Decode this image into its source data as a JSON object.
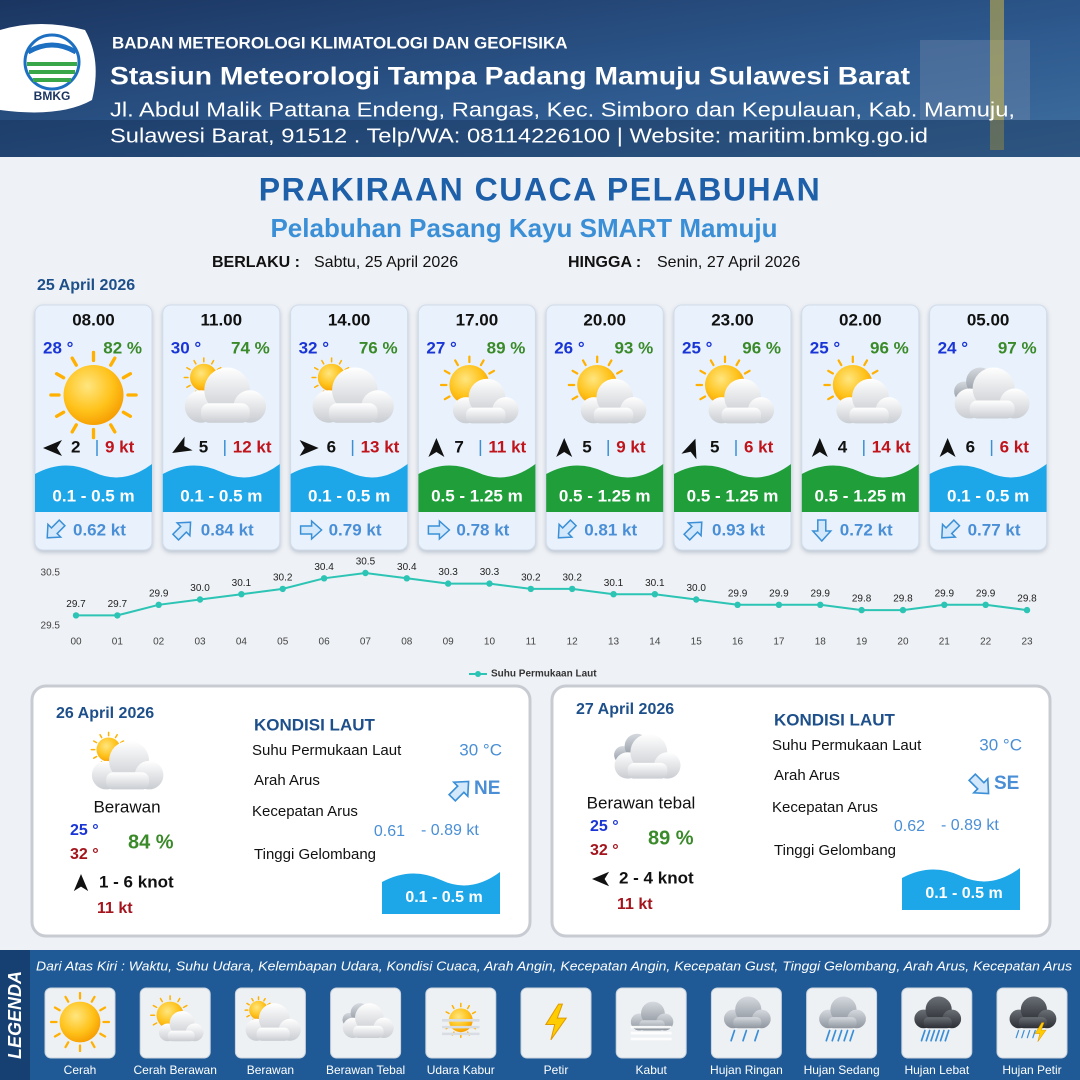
{
  "header": {
    "logo": "BMKG",
    "agency": "BADAN METEOROLOGI KLIMATOLOGI DAN GEOFISIKA",
    "station": "Stasiun Meteorologi Tampa Padang Mamuju Sulawesi Barat",
    "address": [
      "Jl. Abdul Malik Pattana Endeng, Rangas, Kec. Simboro dan Kepulauan, Kab. Mamuju,",
      "Sulawesi Barat, 91512 . Telp/WA: 08114226100 | Website: maritim.bmkg.go.id"
    ]
  },
  "title": "PRAKIRAAN CUACA PELABUHAN",
  "subtitle": "Pelabuhan Pasang Kayu SMART Mamuju",
  "validity": {
    "from_label": "BERLAKU :",
    "from": "Sabtu, 25 April 2026",
    "to_label": "HINGGA :",
    "to": "Senin, 27 April 2026"
  },
  "hourly": {
    "date": "25 April 2026",
    "items": [
      {
        "time": "08.00",
        "temp": "28 °",
        "humidity": "82 %",
        "icon": "sun",
        "wind_deg": 270,
        "wind": "2",
        "gust": "9 kt",
        "wave": "0.1 - 0.5 m",
        "wave_color": "#1ea7e8",
        "current_deg": 225,
        "current": "0.62 kt"
      },
      {
        "time": "11.00",
        "temp": "30 °",
        "humidity": "74 %",
        "icon": "cloud-sun",
        "wind_deg": 240,
        "wind": "5",
        "gust": "12 kt",
        "wave": "0.1 - 0.5 m",
        "wave_color": "#1ea7e8",
        "current_deg": 45,
        "current": "0.84 kt"
      },
      {
        "time": "14.00",
        "temp": "32 °",
        "humidity": "76 %",
        "icon": "cloud-sun",
        "wind_deg": 90,
        "wind": "6",
        "gust": "13 kt",
        "wave": "0.1 - 0.5 m",
        "wave_color": "#1ea7e8",
        "current_deg": 90,
        "current": "0.79 kt"
      },
      {
        "time": "17.00",
        "temp": "27 °",
        "humidity": "89 %",
        "icon": "sun-cloud",
        "wind_deg": 0,
        "wind": "7",
        "gust": "11 kt",
        "wave": "0.5 - 1.25 m",
        "wave_color": "#1f9e3a",
        "current_deg": 90,
        "current": "0.78 kt"
      },
      {
        "time": "20.00",
        "temp": "26 °",
        "humidity": "93 %",
        "icon": "sun-cloud",
        "wind_deg": 0,
        "wind": "5",
        "gust": "9 kt",
        "wave": "0.5 - 1.25 m",
        "wave_color": "#1f9e3a",
        "current_deg": 225,
        "current": "0.81 kt"
      },
      {
        "time": "23.00",
        "temp": "25 °",
        "humidity": "96 %",
        "icon": "sun-cloud",
        "wind_deg": 20,
        "wind": "5",
        "gust": "6 kt",
        "wave": "0.5 - 1.25 m",
        "wave_color": "#1f9e3a",
        "current_deg": 45,
        "current": "0.93 kt"
      },
      {
        "time": "02.00",
        "temp": "25 °",
        "humidity": "96 %",
        "icon": "sun-cloud",
        "wind_deg": 0,
        "wind": "4",
        "gust": "14 kt",
        "wave": "0.5 - 1.25 m",
        "wave_color": "#1f9e3a",
        "current_deg": 180,
        "current": "0.72 kt"
      },
      {
        "time": "05.00",
        "temp": "24 °",
        "humidity": "97 %",
        "icon": "cloud",
        "wind_deg": 0,
        "wind": "6",
        "gust": "6 kt",
        "wave": "0.1 - 0.5 m",
        "wave_color": "#1ea7e8",
        "current_deg": 225,
        "current": "0.77 kt"
      }
    ]
  },
  "chart_data": {
    "type": "line",
    "categories": [
      "00",
      "01",
      "02",
      "03",
      "04",
      "05",
      "06",
      "07",
      "08",
      "09",
      "10",
      "11",
      "12",
      "13",
      "14",
      "15",
      "16",
      "17",
      "18",
      "19",
      "20",
      "21",
      "22",
      "23"
    ],
    "series": [
      {
        "name": "Suhu Permukaan Laut",
        "color": "#2cc4b4",
        "values": [
          29.7,
          29.7,
          29.9,
          30.0,
          30.1,
          30.2,
          30.4,
          30.5,
          30.4,
          30.3,
          30.3,
          30.2,
          30.2,
          30.1,
          30.1,
          30.0,
          29.9,
          29.9,
          29.9,
          29.8,
          29.8,
          29.9,
          29.9,
          29.8
        ],
        "value_labels": [
          "29.7",
          "29.7",
          "29.9",
          "30.0",
          "30.1",
          "30.2",
          "30.4",
          "30.5",
          "30.4",
          "30.3",
          "30.3",
          "30.2",
          "30.2",
          "30.1",
          "30.1",
          "30.0",
          "29.9",
          "29.9",
          "29.9",
          "29.8",
          "29.8",
          "29.9",
          "29.9",
          "29.8"
        ]
      }
    ],
    "ylim": [
      29.5,
      30.5
    ],
    "yticks": [
      29.5,
      30.5
    ],
    "grid": false,
    "legend": "bottom"
  },
  "daily": [
    {
      "date": "26 April 2026",
      "icon": "cloud-sun",
      "condition": "Berawan",
      "temp_min": "25 °",
      "temp_max": "32 °",
      "humidity": "84 %",
      "wind_deg": 0,
      "wind": "1 - 6 knot",
      "gust": "11 kt",
      "sea_title": "KONDISI LAUT",
      "sst_label": "Suhu Permukaan Laut",
      "sst": "30 °C",
      "current_dir_label": "Arah Arus",
      "current_deg": 45,
      "current_dir": "NE",
      "current_speed_label": "Kecepatan Arus",
      "current_min": "0.61",
      "current_max": "- 0.89 kt",
      "wave_label": "Tinggi Gelombang",
      "wave": "0.1 - 0.5 m",
      "wave_color": "#1ea7e8"
    },
    {
      "date": "27 April 2026",
      "icon": "cloud",
      "condition": "Berawan tebal",
      "temp_min": "25 °",
      "temp_max": "32 °",
      "humidity": "89 %",
      "wind_deg": 270,
      "wind": "2 - 4 knot",
      "gust": "11 kt",
      "sea_title": "KONDISI LAUT",
      "sst_label": "Suhu Permukaan Laut",
      "sst": "30 °C",
      "current_dir_label": "Arah Arus",
      "current_deg": 135,
      "current_dir": "SE",
      "current_speed_label": "Kecepatan Arus",
      "current_min": "0.62",
      "current_max": "- 0.89 kt",
      "wave_label": "Tinggi Gelombang",
      "wave": "0.1 - 0.5 m",
      "wave_color": "#1ea7e8"
    }
  ],
  "legend": {
    "title": "LEGENDA",
    "description": "Dari Atas Kiri : Waktu, Suhu Udara, Kelembapan Udara, Kondisi Cuaca, Arah Angin, Kecepatan Angin, Kecepatan Gust, Tinggi Gelombang, Arah Arus, Kecepatan Arus",
    "items": [
      {
        "label": "Cerah",
        "icon": "sun"
      },
      {
        "label": "Cerah Berawan",
        "icon": "sun-cloud"
      },
      {
        "label": "Berawan",
        "icon": "cloud-sun"
      },
      {
        "label": "Berawan Tebal",
        "icon": "cloud"
      },
      {
        "label": "Udara Kabur",
        "icon": "haze"
      },
      {
        "label": "Petir",
        "icon": "thunder"
      },
      {
        "label": "Kabut",
        "icon": "fog"
      },
      {
        "label": "Hujan Ringan",
        "icon": "rain-light"
      },
      {
        "label": "Hujan Sedang",
        "icon": "rain-moderate"
      },
      {
        "label": "Hujan Lebat",
        "icon": "rain-heavy"
      },
      {
        "label": "Hujan Petir",
        "icon": "rain-thunder"
      }
    ]
  }
}
